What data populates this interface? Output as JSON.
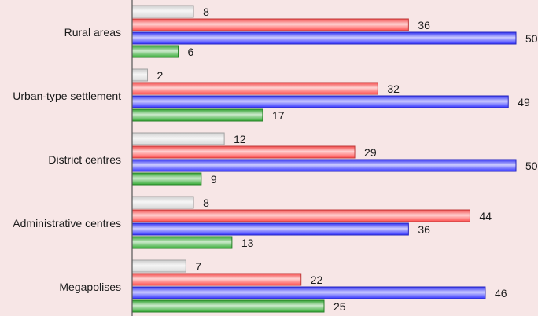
{
  "chart_data": {
    "type": "bar",
    "orientation": "horizontal",
    "categories": [
      "Rural areas",
      "Urban-type settlement",
      "District centres",
      "Administrative centres",
      "Megapolises"
    ],
    "series": [
      {
        "values": [
          8,
          2,
          12,
          8,
          7
        ],
        "color": "#d9d9d9"
      },
      {
        "values": [
          36,
          32,
          29,
          44,
          22
        ],
        "color": "#ff4d4d"
      },
      {
        "values": [
          50,
          49,
          50,
          36,
          46
        ],
        "color": "#3333ff"
      },
      {
        "values": [
          6,
          17,
          9,
          13,
          25
        ],
        "color": "#33aa33"
      }
    ],
    "xlim": [
      0,
      50
    ],
    "grid": false,
    "legend": "none",
    "data_labels": true
  }
}
